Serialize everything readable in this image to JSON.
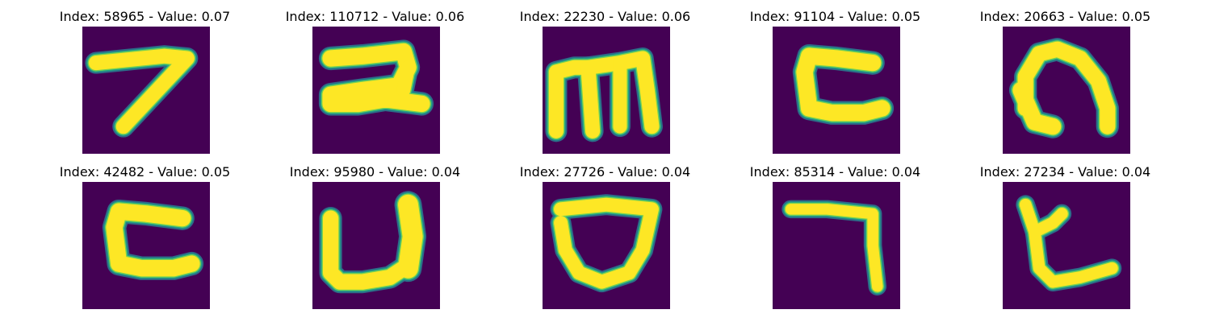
{
  "figure": {
    "colors": {
      "background": "#440154",
      "mid": "#22a884",
      "edge": "#2a788e",
      "ink": "#fde725",
      "inner": "#7ad151"
    },
    "panels": [
      {
        "title": "Index: 58965 - Value: 0.07",
        "glyph": "seven"
      },
      {
        "title": "Index: 110712 - Value: 0.06",
        "glyph": "z-shape"
      },
      {
        "title": "Index: 22230 - Value: 0.06",
        "glyph": "m-shape"
      },
      {
        "title": "Index: 91104 - Value: 0.05",
        "glyph": "reverse-c"
      },
      {
        "title": "Index: 20663 - Value: 0.05",
        "glyph": "arch"
      },
      {
        "title": "Index: 42482 - Value: 0.05",
        "glyph": "reverse-c"
      },
      {
        "title": "Index: 95980 - Value: 0.04",
        "glyph": "u-shape"
      },
      {
        "title": "Index: 27726 - Value: 0.04",
        "glyph": "d-shape"
      },
      {
        "title": "Index: 85314 - Value: 0.04",
        "glyph": "seven-angle"
      },
      {
        "title": "Index: 27234 - Value: 0.04",
        "glyph": "y-shape"
      }
    ]
  }
}
